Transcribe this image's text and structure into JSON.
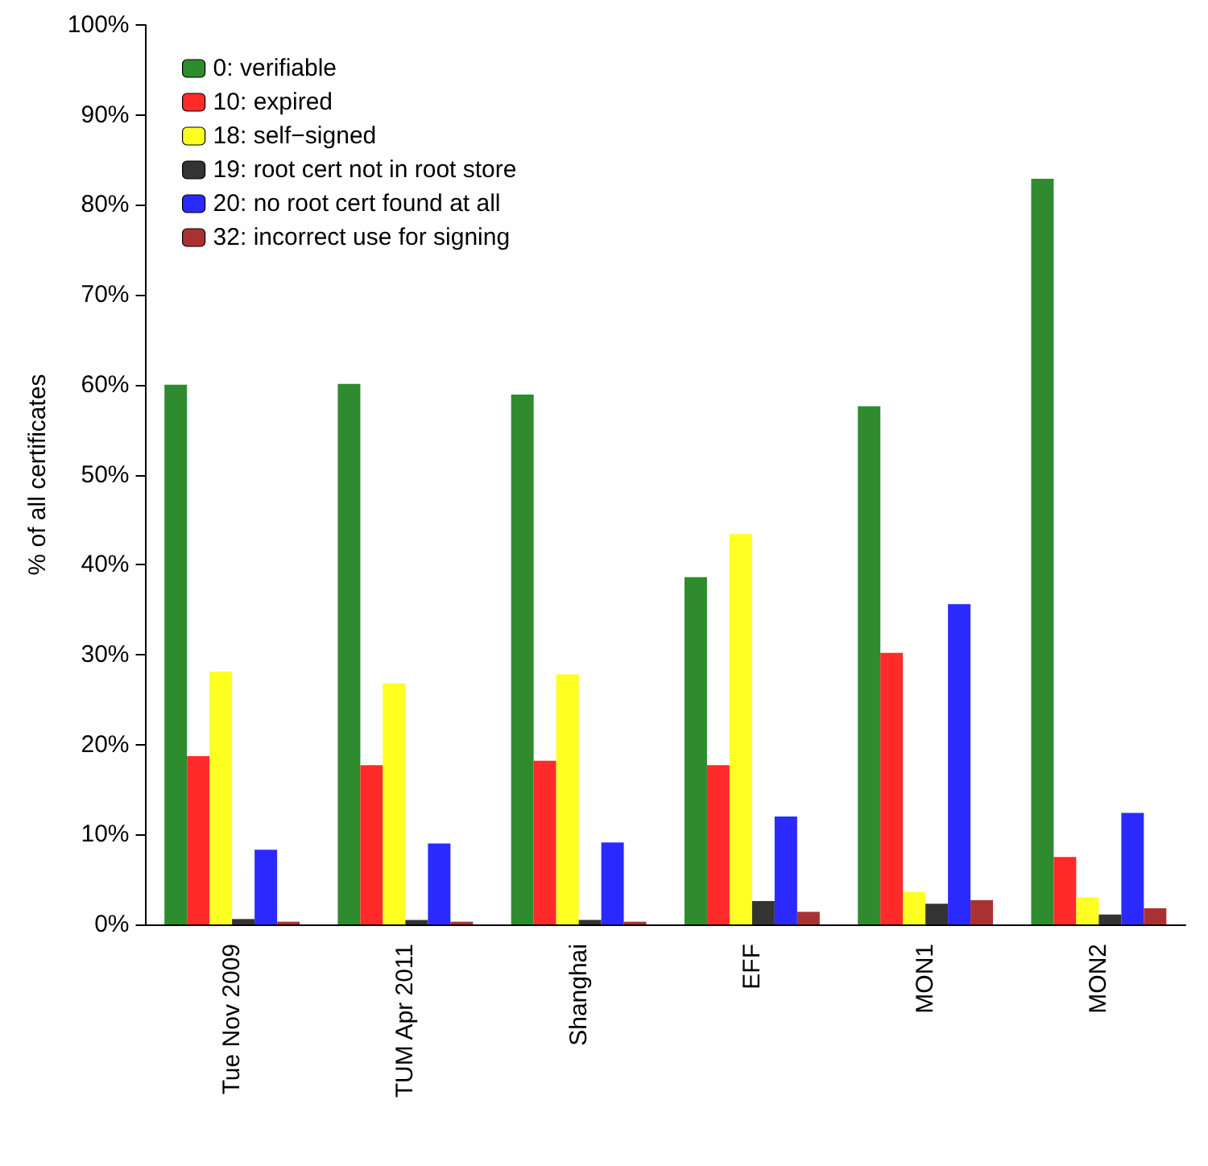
{
  "chart_data": {
    "type": "bar",
    "ylabel": "% of all certificates",
    "categories": [
      "Tue Nov 2009",
      "TUM Apr 2011",
      "Shanghai",
      "EFF",
      "MON1",
      "MON2"
    ],
    "series": [
      {
        "name": "0: verifiable",
        "color": "#2e8b2e",
        "values": [
          60.0,
          60.1,
          58.9,
          38.6,
          57.6,
          82.9
        ]
      },
      {
        "name": "10: expired",
        "color": "#ff2a2a",
        "values": [
          18.7,
          17.7,
          18.2,
          17.7,
          30.2,
          7.5
        ]
      },
      {
        "name": "18: self−signed",
        "color": "#ffff22",
        "values": [
          28.1,
          26.8,
          27.8,
          43.4,
          3.6,
          3.0
        ]
      },
      {
        "name": "19: root cert not in root store",
        "color": "#333333",
        "values": [
          0.6,
          0.5,
          0.5,
          2.6,
          2.3,
          1.1
        ]
      },
      {
        "name": "20: no root cert found at all",
        "color": "#2a2aff",
        "values": [
          8.3,
          9.0,
          9.1,
          12.0,
          35.6,
          12.4
        ]
      },
      {
        "name": "32: incorrect use for signing",
        "color": "#a83232",
        "values": [
          0.3,
          0.3,
          0.3,
          1.4,
          2.7,
          1.8
        ]
      }
    ],
    "ylim": [
      0,
      100
    ],
    "yticks": [
      {
        "value": 0,
        "label": "0%"
      },
      {
        "value": 10,
        "label": "10%"
      },
      {
        "value": 20,
        "label": "20%"
      },
      {
        "value": 30,
        "label": "30%"
      },
      {
        "value": 40,
        "label": "40%"
      },
      {
        "value": 50,
        "label": "50%"
      },
      {
        "value": 60,
        "label": "60%"
      },
      {
        "value": 70,
        "label": "70%"
      },
      {
        "value": 80,
        "label": "80%"
      },
      {
        "value": 90,
        "label": "90%"
      },
      {
        "value": 100,
        "label": "100%"
      }
    ],
    "grid": false,
    "legend": "top left"
  }
}
